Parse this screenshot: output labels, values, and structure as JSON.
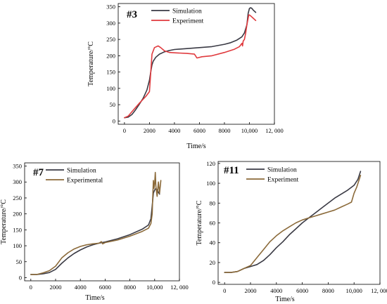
{
  "chart_data": [
    {
      "type": "line",
      "title": "#3",
      "xlabel": "Time/s",
      "ylabel": "Temperature/°C",
      "xlim": [
        -500,
        12000
      ],
      "ylim": [
        -10,
        360
      ],
      "xticks": [
        0,
        2000,
        4000,
        6000,
        8000,
        10000,
        12000
      ],
      "xtick_labels": [
        "0",
        "2000",
        "4000",
        "6000",
        "8000",
        "10,000",
        "12, 000"
      ],
      "yticks": [
        0,
        50,
        100,
        150,
        200,
        250,
        300,
        350
      ],
      "ytick_labels": [
        "0",
        "50",
        "100",
        "150",
        "200",
        "250",
        "300",
        "350"
      ],
      "legend_position": "top-right",
      "series": [
        {
          "name": "Simulation",
          "color": "#3a3a44",
          "x": [
            0,
            300,
            600,
            900,
            1200,
            1500,
            1800,
            2000,
            2100,
            2200,
            2300,
            2500,
            2800,
            3200,
            3600,
            4000,
            5000,
            6000,
            7000,
            8000,
            8500,
            9000,
            9400,
            9600,
            9800,
            9900,
            10000,
            10100,
            10200,
            10300,
            10500
          ],
          "y": [
            10,
            12,
            20,
            35,
            52,
            70,
            95,
            125,
            150,
            172,
            183,
            195,
            205,
            212,
            216,
            219,
            222,
            225,
            228,
            235,
            240,
            248,
            258,
            270,
            295,
            330,
            345,
            347,
            345,
            340,
            333
          ]
        },
        {
          "name": "Experiment",
          "color": "#e03a3e",
          "x": [
            0,
            300,
            700,
            1200,
            1700,
            2000,
            2200,
            2400,
            2700,
            2900,
            3200,
            3600,
            4000,
            5000,
            5600,
            5800,
            6200,
            7000,
            8000,
            8800,
            9200,
            9400,
            9450,
            9500,
            9600,
            9700,
            9800,
            9900,
            9950,
            10000,
            10100,
            10300,
            10500
          ],
          "y": [
            10,
            15,
            33,
            55,
            75,
            90,
            205,
            225,
            230,
            225,
            215,
            210,
            209,
            207,
            205,
            193,
            197,
            200,
            210,
            220,
            228,
            238,
            230,
            245,
            250,
            270,
            295,
            315,
            325,
            325,
            322,
            315,
            308
          ]
        }
      ]
    },
    {
      "type": "line",
      "title": "#7",
      "xlabel": "Time/s",
      "ylabel": "Temperature/°C",
      "xlim": [
        -500,
        12000
      ],
      "ylim": [
        -10,
        360
      ],
      "xticks": [
        0,
        2000,
        4000,
        6000,
        8000,
        10000,
        12000
      ],
      "xtick_labels": [
        "0",
        "2000",
        "4000",
        "6000",
        "8000",
        "10,000",
        "12, 000"
      ],
      "yticks": [
        0,
        50,
        100,
        150,
        200,
        250,
        300,
        350
      ],
      "ytick_labels": [
        "0",
        "50",
        "100",
        "150",
        "200",
        "250",
        "300",
        "350"
      ],
      "legend_position": "top-right",
      "series": [
        {
          "name": "Simulation",
          "color": "#3a3a44",
          "x": [
            0,
            500,
            1000,
            1500,
            2000,
            2500,
            3000,
            3500,
            4000,
            4500,
            5000,
            5500,
            6000,
            7000,
            8000,
            9000,
            9500,
            9700,
            9800,
            9900,
            10000,
            10100,
            10200,
            10300,
            10400
          ],
          "y": [
            10,
            10,
            12,
            16,
            26,
            45,
            62,
            76,
            87,
            96,
            103,
            108,
            112,
            122,
            135,
            152,
            165,
            185,
            225,
            265,
            275,
            280,
            275,
            268,
            262
          ]
        },
        {
          "name": "Experimental",
          "color": "#8b6a3a",
          "x": [
            0,
            500,
            1000,
            1500,
            2000,
            2500,
            3000,
            3500,
            4000,
            4500,
            5000,
            5500,
            5700,
            5800,
            6000,
            7000,
            8000,
            9000,
            9500,
            9700,
            9800,
            9850,
            9900,
            9950,
            10000,
            10050,
            10100,
            10150,
            10200,
            10300,
            10400,
            10500
          ],
          "y": [
            10,
            10,
            15,
            22,
            36,
            62,
            78,
            90,
            98,
            103,
            106,
            108,
            113,
            106,
            110,
            118,
            130,
            145,
            155,
            170,
            200,
            260,
            305,
            280,
            295,
            330,
            285,
            270,
            255,
            300,
            265,
            305
          ]
        }
      ]
    },
    {
      "type": "line",
      "title": "#11",
      "xlabel": "Time/s",
      "ylabel": "Temperature/°C",
      "xlim": [
        -500,
        12000
      ],
      "ylim": [
        -2,
        122
      ],
      "xticks": [
        0,
        2000,
        4000,
        6000,
        8000,
        10000,
        12000
      ],
      "xtick_labels": [
        "0",
        "2000",
        "4000",
        "6000",
        "8000",
        "10,000",
        "12, 000"
      ],
      "yticks": [
        0,
        20,
        40,
        60,
        80,
        100,
        120
      ],
      "ytick_labels": [
        "0",
        "20",
        "40",
        "60",
        "80",
        "100",
        "120"
      ],
      "legend_position": "top-right",
      "series": [
        {
          "name": "Simulation",
          "color": "#3a3a44",
          "x": [
            0,
            500,
            1000,
            1500,
            2000,
            2500,
            3000,
            3500,
            4000,
            4500,
            5000,
            5500,
            6000,
            6500,
            7000,
            7500,
            8000,
            8500,
            9000,
            9500,
            10000,
            10300,
            10500
          ],
          "y": [
            10,
            10,
            11,
            14,
            16,
            18,
            22,
            28,
            35,
            41,
            48,
            54,
            60,
            65,
            70,
            75,
            80,
            85,
            89,
            93,
            98,
            104,
            112
          ]
        },
        {
          "name": "Experiment",
          "color": "#8b6a3a",
          "x": [
            0,
            500,
            1000,
            1500,
            2000,
            2500,
            3000,
            3500,
            4000,
            4500,
            5000,
            5500,
            6000,
            6500,
            7000,
            7500,
            8000,
            8500,
            9000,
            9500,
            9800,
            10000,
            10200,
            10400,
            10500
          ],
          "y": [
            10,
            10,
            11,
            14,
            17,
            25,
            33,
            41,
            47,
            52,
            56,
            60,
            63,
            65,
            67,
            69,
            71,
            73,
            76,
            79,
            81,
            90,
            96,
            104,
            108
          ]
        }
      ]
    }
  ]
}
